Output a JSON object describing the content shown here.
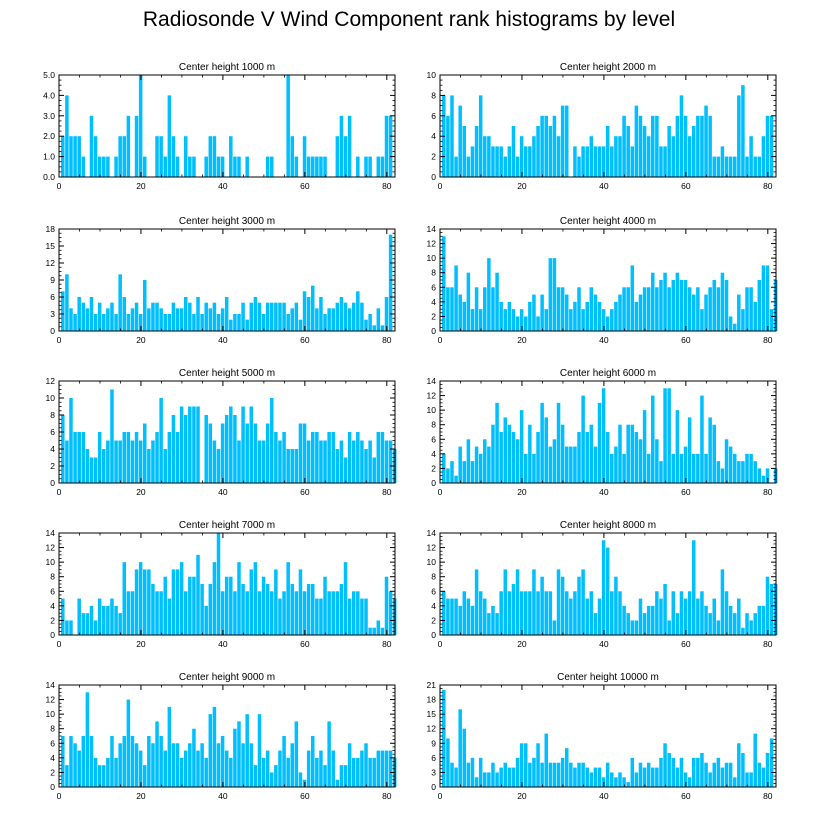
{
  "title": "Radiosonde V Wind Component rank histograms by level",
  "bar_color": "#00bfff",
  "chart_data": [
    {
      "type": "bar",
      "title": "Center height 1000 m",
      "xlim": [
        0,
        82
      ],
      "ylim": [
        0,
        5
      ],
      "yticks": [
        0,
        1,
        2,
        3,
        4,
        5
      ],
      "ytick_labels": [
        "0.0",
        "1.0",
        "2.0",
        "3.0",
        "4.0",
        "5.0"
      ],
      "xticks": [
        0,
        20,
        40,
        60,
        80
      ],
      "values": [
        2,
        4,
        2,
        2,
        2,
        1,
        0,
        3,
        2,
        1,
        1,
        1,
        0,
        1,
        2,
        2,
        3,
        0,
        3,
        5,
        1,
        0,
        0,
        2,
        2,
        1,
        4,
        2,
        1,
        0,
        2,
        1,
        1,
        0,
        0,
        1,
        2,
        2,
        1,
        1,
        0,
        2,
        1,
        1,
        0,
        1,
        0,
        0,
        0,
        0,
        1,
        1,
        0,
        0,
        0,
        5,
        2,
        1,
        0,
        2,
        1,
        1,
        1,
        1,
        1,
        0,
        0,
        2,
        3,
        2,
        3,
        0,
        1,
        0,
        1,
        1,
        0,
        1,
        1,
        3,
        3
      ]
    },
    {
      "type": "bar",
      "title": "Center height 2000 m",
      "xlim": [
        0,
        82
      ],
      "ylim": [
        0,
        10
      ],
      "yticks": [
        0,
        2,
        4,
        6,
        8,
        10
      ],
      "xticks": [
        0,
        20,
        40,
        60,
        80
      ],
      "values": [
        8,
        6,
        8,
        2,
        7,
        5,
        2,
        3,
        5,
        8,
        4,
        4,
        3,
        3,
        3,
        2,
        3,
        5,
        2,
        4,
        3,
        3,
        4,
        5,
        6,
        6,
        5,
        6,
        4,
        7,
        7,
        0,
        3,
        2,
        3,
        3,
        4,
        3,
        3,
        3,
        5,
        3,
        4,
        4,
        6,
        5,
        3,
        7,
        6,
        5,
        4,
        6,
        6,
        3,
        3,
        5,
        4,
        6,
        8,
        6,
        4,
        5,
        6,
        6,
        7,
        6,
        2,
        2,
        3,
        2,
        2,
        2,
        8,
        9,
        2,
        4,
        2,
        2,
        4,
        6,
        6
      ]
    },
    {
      "type": "bar",
      "title": "Center height 3000 m",
      "xlim": [
        0,
        82
      ],
      "ylim": [
        0,
        18
      ],
      "yticks": [
        0,
        3,
        6,
        9,
        12,
        15,
        18
      ],
      "xticks": [
        0,
        20,
        40,
        60,
        80
      ],
      "values": [
        7,
        10,
        4,
        3,
        6,
        5,
        4,
        6,
        3,
        5,
        3,
        4,
        5,
        3,
        10,
        6,
        3,
        4,
        5,
        3,
        9,
        4,
        5,
        5,
        4,
        3,
        3,
        5,
        4,
        4,
        6,
        5,
        3,
        6,
        3,
        5,
        4,
        5,
        3,
        4,
        6,
        2,
        3,
        3,
        5,
        2,
        5,
        6,
        5,
        3,
        5,
        5,
        5,
        5,
        5,
        3,
        4,
        5,
        2,
        7,
        6,
        8,
        4,
        6,
        3,
        4,
        4,
        5,
        6,
        5,
        4,
        5,
        7,
        5,
        2,
        3,
        1,
        4,
        1,
        6,
        17
      ]
    },
    {
      "type": "bar",
      "title": "Center height 4000 m",
      "xlim": [
        0,
        82
      ],
      "ylim": [
        0,
        14
      ],
      "yticks": [
        0,
        2,
        4,
        6,
        8,
        10,
        12,
        14
      ],
      "xticks": [
        0,
        20,
        40,
        60,
        80
      ],
      "values": [
        13,
        6,
        6,
        9,
        5,
        4,
        8,
        3,
        6,
        3,
        6,
        10,
        6,
        8,
        4,
        3,
        4,
        3,
        2,
        3,
        2,
        4,
        5,
        2,
        5,
        3,
        10,
        10,
        6,
        6,
        5,
        3,
        4,
        6,
        3,
        4,
        6,
        5,
        4,
        3,
        2,
        3,
        4,
        5,
        6,
        6,
        9,
        4,
        5,
        6,
        6,
        8,
        6,
        7,
        8,
        6,
        7,
        8,
        7,
        7,
        6,
        5,
        6,
        3,
        5,
        6,
        7,
        6,
        8,
        7,
        2,
        1,
        5,
        3,
        6,
        6,
        4,
        7,
        9,
        9,
        3,
        7
      ]
    },
    {
      "type": "bar",
      "title": "Center height 5000 m",
      "xlim": [
        0,
        82
      ],
      "ylim": [
        0,
        12
      ],
      "yticks": [
        0,
        2,
        4,
        6,
        8,
        10,
        12
      ],
      "xticks": [
        0,
        20,
        40,
        60,
        80
      ],
      "values": [
        8,
        5,
        10,
        6,
        6,
        6,
        4,
        3,
        3,
        6,
        4,
        5,
        11,
        5,
        5,
        6,
        6,
        5,
        6,
        5,
        7,
        4,
        5,
        6,
        10,
        4,
        6,
        8,
        6,
        9,
        8,
        9,
        9,
        9,
        0,
        8,
        7,
        5,
        4,
        7,
        8,
        9,
        8,
        5,
        9,
        7,
        9,
        7,
        5,
        5,
        7,
        10,
        6,
        5,
        6,
        4,
        4,
        4,
        7,
        7,
        5,
        6,
        6,
        5,
        5,
        6,
        6,
        4,
        5,
        3,
        6,
        5,
        6,
        5,
        4,
        5,
        3,
        6,
        6,
        5,
        5,
        4
      ]
    },
    {
      "type": "bar",
      "title": "Center height 6000 m",
      "xlim": [
        0,
        82
      ],
      "ylim": [
        0,
        14
      ],
      "yticks": [
        0,
        2,
        4,
        6,
        8,
        10,
        12,
        14
      ],
      "xticks": [
        0,
        20,
        40,
        60,
        80
      ],
      "values": [
        4,
        2,
        3,
        1,
        5,
        3,
        6,
        3,
        5,
        4,
        6,
        5,
        8,
        11,
        7,
        9,
        8,
        7,
        6,
        10,
        4,
        8,
        4,
        7,
        11,
        9,
        5,
        6,
        11,
        8,
        5,
        5,
        5,
        7,
        12,
        7,
        8,
        5,
        11,
        13,
        7,
        4,
        5,
        8,
        4,
        8,
        8,
        7,
        6,
        10,
        4,
        12,
        6,
        3,
        13,
        13,
        4,
        10,
        4,
        5,
        9,
        4,
        4,
        12,
        4,
        9,
        8,
        3,
        2,
        6,
        5,
        4,
        3,
        3,
        4,
        4,
        3,
        2,
        1,
        2,
        0,
        2
      ]
    },
    {
      "type": "bar",
      "title": "Center height 7000 m",
      "xlim": [
        0,
        82
      ],
      "ylim": [
        0,
        14
      ],
      "yticks": [
        0,
        2,
        4,
        6,
        8,
        10,
        12,
        14
      ],
      "xticks": [
        0,
        20,
        40,
        60,
        80
      ],
      "values": [
        5,
        2,
        2,
        0,
        5,
        3,
        3,
        4,
        2,
        5,
        4,
        4,
        5,
        4,
        3,
        10,
        6,
        6,
        9,
        10,
        9,
        9,
        7,
        6,
        6,
        8,
        5,
        9,
        9,
        10,
        6,
        8,
        8,
        11,
        7,
        4,
        7,
        10,
        14,
        6,
        8,
        8,
        6,
        10,
        7,
        6,
        9,
        10,
        6,
        8,
        7,
        6,
        9,
        5,
        6,
        10,
        7,
        6,
        9,
        6,
        7,
        7,
        5,
        5,
        8,
        6,
        6,
        6,
        7,
        10,
        5,
        6,
        6,
        5,
        5,
        1,
        1,
        2,
        1,
        8,
        6,
        5
      ]
    },
    {
      "type": "bar",
      "title": "Center height 8000 m",
      "xlim": [
        0,
        82
      ],
      "ylim": [
        0,
        14
      ],
      "yticks": [
        0,
        2,
        4,
        6,
        8,
        10,
        12,
        14
      ],
      "xticks": [
        0,
        20,
        40,
        60,
        80
      ],
      "values": [
        6,
        5,
        5,
        5,
        4,
        6,
        5,
        4,
        9,
        6,
        5,
        3,
        4,
        3,
        6,
        9,
        6,
        7,
        9,
        6,
        6,
        6,
        9,
        6,
        8,
        6,
        6,
        2,
        9,
        8,
        6,
        5,
        6,
        8,
        9,
        5,
        6,
        3,
        5,
        13,
        12,
        6,
        8,
        6,
        4,
        3,
        2,
        2,
        5,
        3,
        4,
        4,
        6,
        5,
        7,
        2,
        6,
        3,
        6,
        5,
        6,
        13,
        5,
        6,
        4,
        3,
        5,
        2,
        9,
        6,
        4,
        3,
        5,
        1,
        3,
        2,
        3,
        4,
        4,
        8,
        7,
        7
      ]
    },
    {
      "type": "bar",
      "title": "Center height 9000 m",
      "xlim": [
        0,
        82
      ],
      "ylim": [
        0,
        14
      ],
      "yticks": [
        0,
        2,
        4,
        6,
        8,
        10,
        12,
        14
      ],
      "xticks": [
        0,
        20,
        40,
        60,
        80
      ],
      "values": [
        7,
        3,
        7,
        6,
        5,
        7,
        13,
        7,
        4,
        3,
        3,
        4,
        7,
        4,
        6,
        7,
        12,
        7,
        6,
        5,
        3,
        7,
        6,
        9,
        7,
        5,
        11,
        6,
        6,
        4,
        5,
        6,
        8,
        5,
        6,
        4,
        10,
        11,
        6,
        7,
        5,
        4,
        8,
        9,
        6,
        10,
        6,
        3,
        10,
        4,
        5,
        2,
        3,
        5,
        7,
        4,
        6,
        9,
        2,
        1,
        5,
        7,
        4,
        5,
        3,
        9,
        5,
        1,
        3,
        3,
        6,
        4,
        4,
        5,
        6,
        4,
        4,
        5,
        5,
        5,
        5,
        4
      ]
    },
    {
      "type": "bar",
      "title": "Center height 10000 m",
      "xlim": [
        0,
        82
      ],
      "ylim": [
        0,
        21
      ],
      "yticks": [
        0,
        3,
        6,
        9,
        12,
        15,
        18,
        21
      ],
      "xticks": [
        0,
        20,
        40,
        60,
        80
      ],
      "values": [
        20,
        10,
        5,
        4,
        16,
        12,
        5,
        6,
        2,
        6,
        3,
        3,
        5,
        3,
        4,
        5,
        4,
        4,
        6,
        9,
        9,
        5,
        6,
        9,
        5,
        11,
        5,
        5,
        5,
        6,
        8,
        5,
        4,
        5,
        5,
        4,
        3,
        4,
        4,
        2,
        5,
        3,
        2,
        3,
        2,
        1,
        6,
        3,
        5,
        4,
        5,
        4,
        4,
        6,
        9,
        7,
        6,
        4,
        6,
        3,
        2,
        6,
        6,
        7,
        5,
        3,
        5,
        6,
        4,
        5,
        5,
        2,
        9,
        7,
        3,
        3,
        11,
        5,
        4,
        7,
        10
      ]
    }
  ]
}
